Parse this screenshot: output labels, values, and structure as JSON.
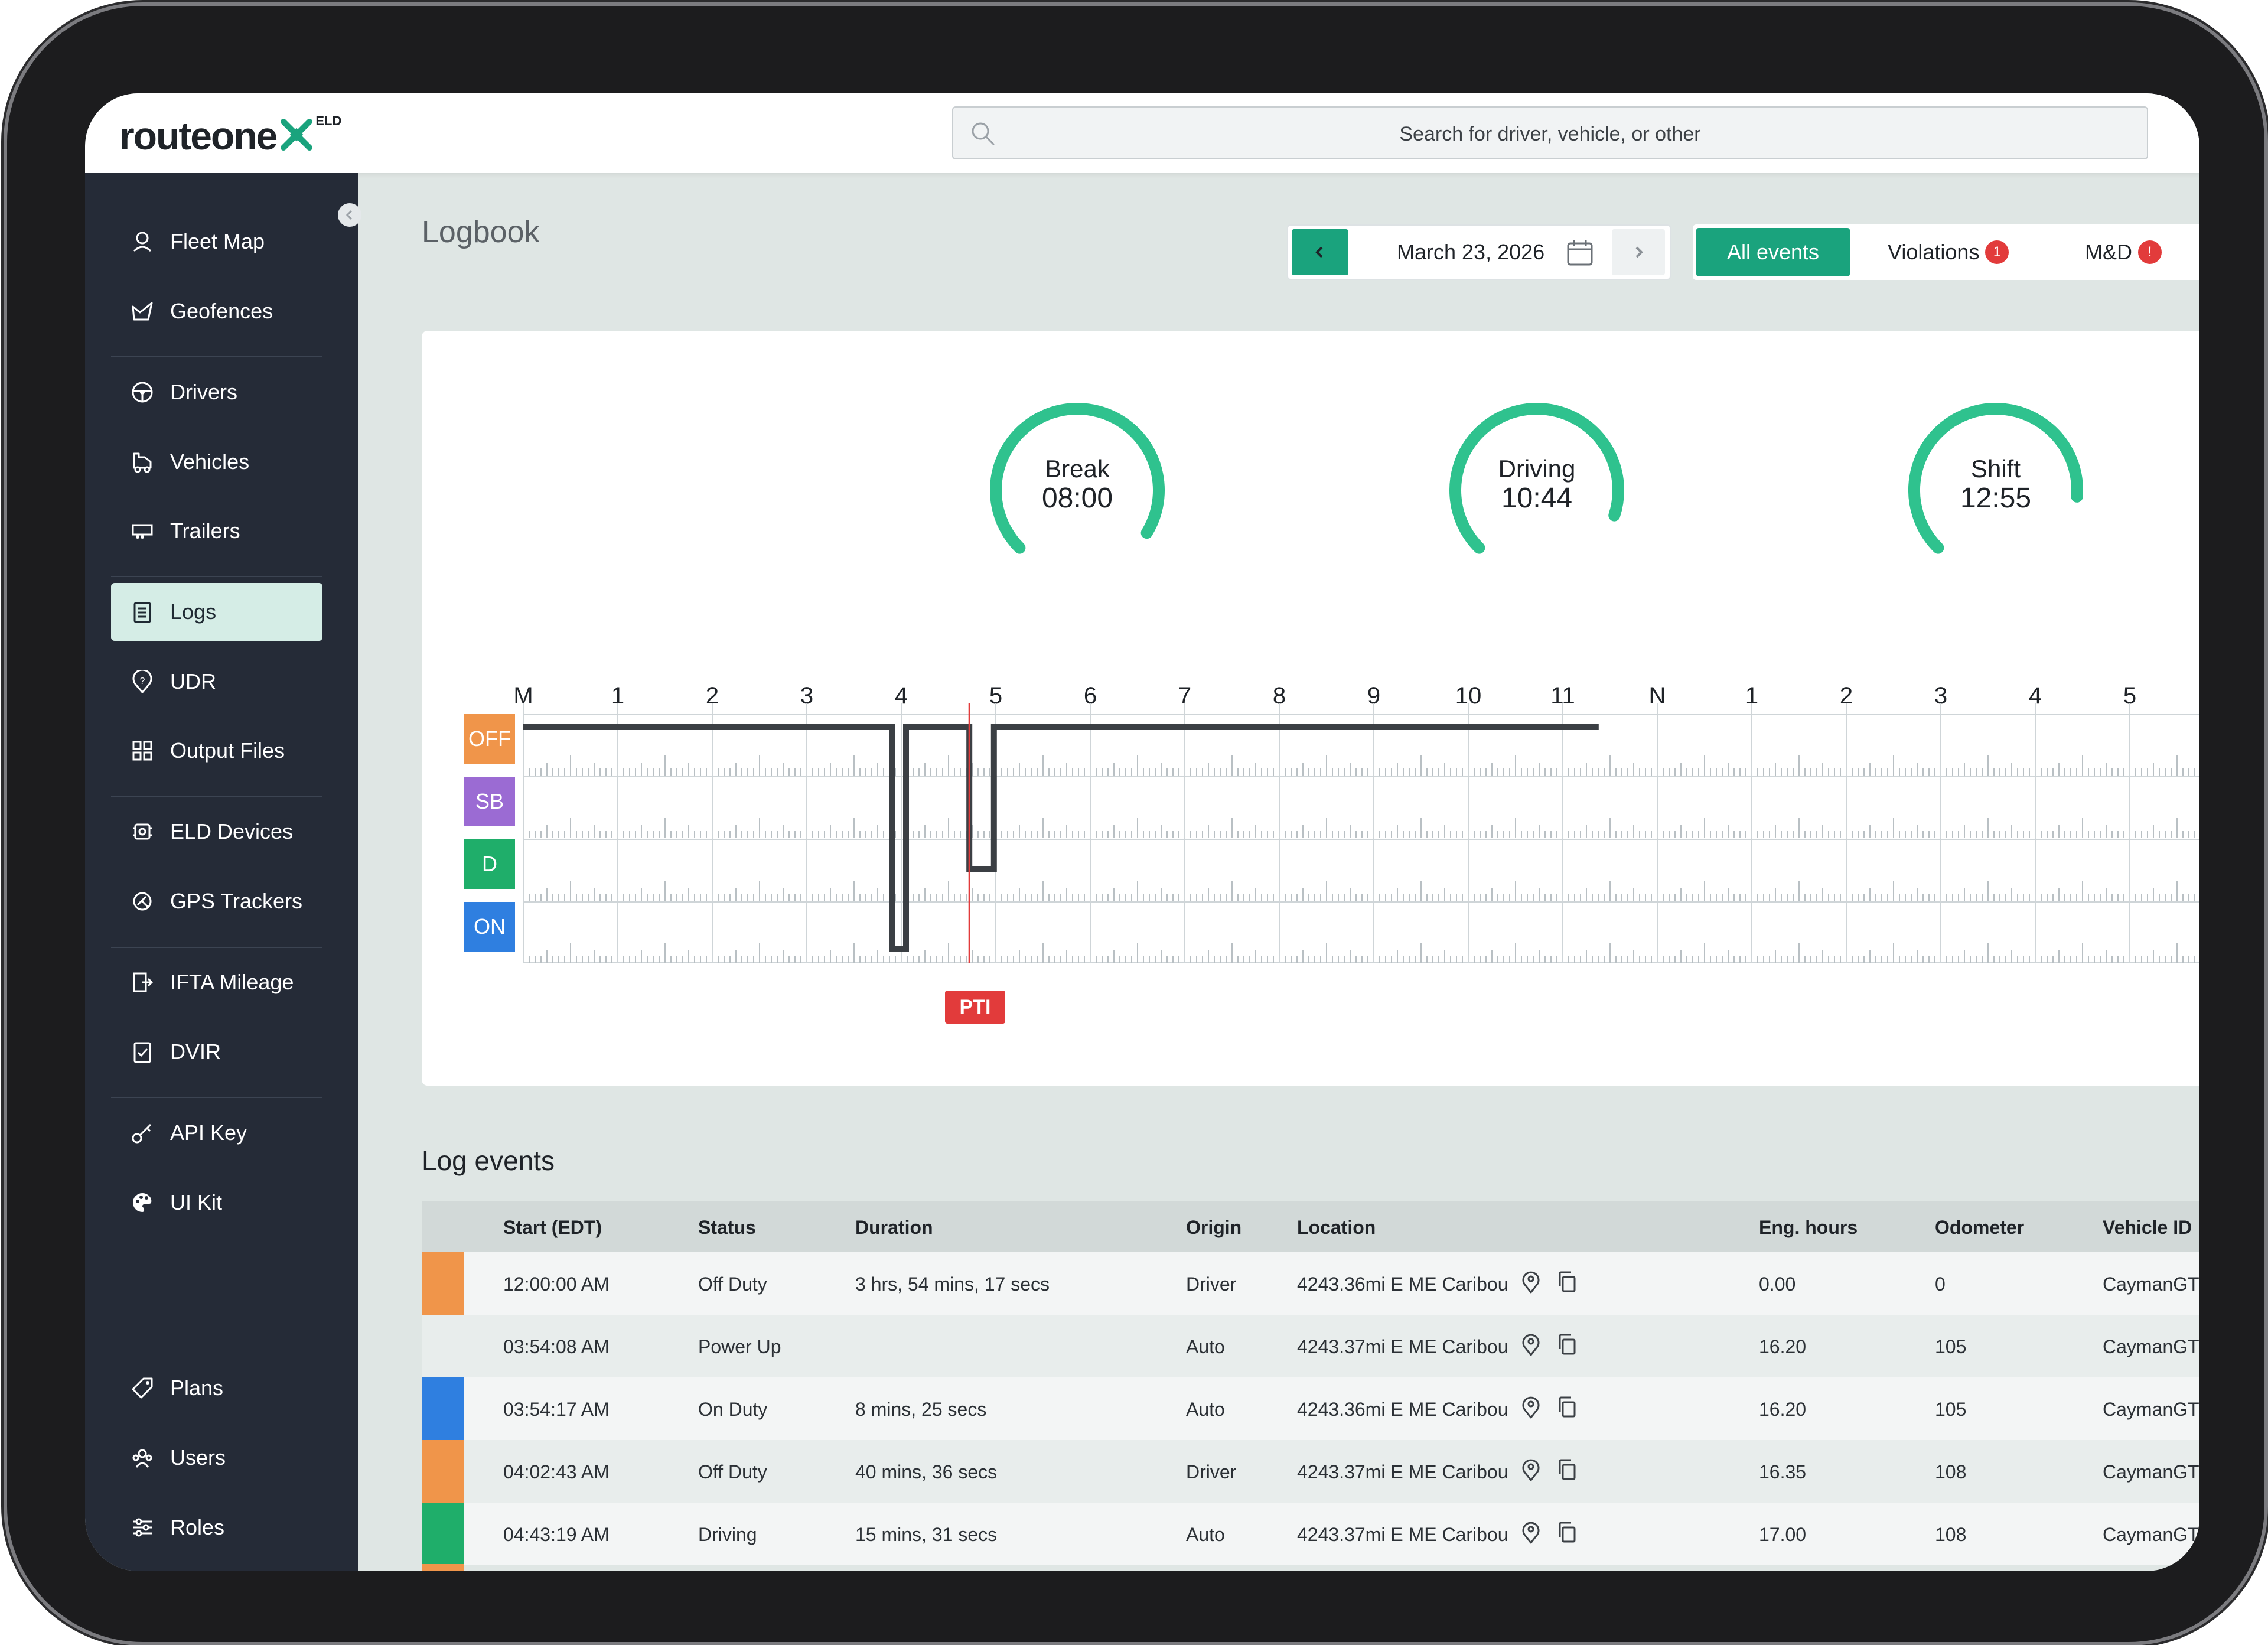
{
  "brand": {
    "name": "routeone",
    "badge": "ELD"
  },
  "search": {
    "placeholder": "Search for driver, vehicle, or other"
  },
  "sidebar": {
    "items": [
      {
        "label": "Fleet Map",
        "icon": "pin-icon"
      },
      {
        "label": "Geofences",
        "icon": "geofence-icon"
      },
      {
        "label": "Drivers",
        "icon": "steering-wheel-icon"
      },
      {
        "label": "Vehicles",
        "icon": "truck-icon"
      },
      {
        "label": "Trailers",
        "icon": "trailer-icon"
      },
      {
        "label": "Logs",
        "icon": "clipboard-icon",
        "active": true
      },
      {
        "label": "UDR",
        "icon": "question-pin-icon"
      },
      {
        "label": "Output Files",
        "icon": "grid-icon"
      },
      {
        "label": "ELD Devices",
        "icon": "device-icon"
      },
      {
        "label": "GPS Trackers",
        "icon": "gps-icon"
      },
      {
        "label": "IFTA Mileage",
        "icon": "mileage-icon"
      },
      {
        "label": "DVIR",
        "icon": "checklist-icon"
      },
      {
        "label": "API Key",
        "icon": "key-icon"
      },
      {
        "label": "UI Kit",
        "icon": "palette-icon"
      },
      {
        "label": "Plans",
        "icon": "tag-icon"
      },
      {
        "label": "Users",
        "icon": "users-icon"
      },
      {
        "label": "Roles",
        "icon": "sliders-icon"
      }
    ]
  },
  "page": {
    "title": "Logbook"
  },
  "date_nav": {
    "date": "March 23, 2026"
  },
  "filters": {
    "all": "All events",
    "violations": "Violations",
    "violations_count": "1",
    "md": "M&D",
    "md_count": "!"
  },
  "gauges": [
    {
      "name": "Break",
      "value": "08:00",
      "fraction": 0.95
    },
    {
      "name": "Driving",
      "value": "10:44",
      "fraction": 0.9
    },
    {
      "name": "Shift",
      "value": "12:55",
      "fraction": 0.85
    }
  ],
  "timeline": {
    "hour_labels": [
      "M",
      "1",
      "2",
      "3",
      "4",
      "5",
      "6",
      "7",
      "8",
      "9",
      "10",
      "11",
      "N",
      "1",
      "2",
      "3",
      "4",
      "5"
    ],
    "statuses": [
      {
        "label": "OFF",
        "color": "#f0954a"
      },
      {
        "label": "SB",
        "color": "#9b6bd3"
      },
      {
        "label": "D",
        "color": "#1fae6a"
      },
      {
        "label": "ON",
        "color": "#2f7fe0"
      }
    ],
    "marker": "PTI",
    "segments": [
      {
        "status": 0,
        "start": 0.0,
        "end": 3.9
      },
      {
        "status": 3,
        "start": 3.9,
        "end": 4.05
      },
      {
        "status": 0,
        "start": 4.05,
        "end": 4.72
      },
      {
        "status": 2,
        "start": 4.72,
        "end": 4.98
      },
      {
        "status": 0,
        "start": 4.98,
        "end": 11.38
      }
    ],
    "marker_hour": 4.72
  },
  "log_events": {
    "title": "Log events",
    "columns": [
      "Start (EDT)",
      "Status",
      "Duration",
      "Origin",
      "Location",
      "Eng. hours",
      "Odometer",
      "Vehicle ID"
    ],
    "rows": [
      {
        "color": "#f0954a",
        "start": "12:00:00 AM",
        "status": "Off Duty",
        "duration": "3 hrs, 54 mins, 17 secs",
        "origin": "Driver",
        "location": "4243.36mi E ME Caribou",
        "eng": "0.00",
        "odo": "0",
        "vehicle": "CaymanGTS"
      },
      {
        "color": "",
        "start": "03:54:08 AM",
        "status": "Power Up",
        "duration": "",
        "origin": "Auto",
        "location": "4243.37mi E ME Caribou",
        "eng": "16.20",
        "odo": "105",
        "vehicle": "CaymanGTS"
      },
      {
        "color": "#2f7fe0",
        "start": "03:54:17 AM",
        "status": "On Duty",
        "duration": "8 mins, 25 secs",
        "origin": "Auto",
        "location": "4243.36mi E ME Caribou",
        "eng": "16.20",
        "odo": "105",
        "vehicle": "CaymanGTS"
      },
      {
        "color": "#f0954a",
        "start": "04:02:43 AM",
        "status": "Off Duty",
        "duration": "40 mins, 36 secs",
        "origin": "Driver",
        "location": "4243.37mi E ME Caribou",
        "eng": "16.35",
        "odo": "108",
        "vehicle": "CaymanGTS"
      },
      {
        "color": "#1fae6a",
        "start": "04:43:19 AM",
        "status": "Driving",
        "duration": "15 mins, 31 secs",
        "origin": "Auto",
        "location": "4243.37mi E ME Caribou",
        "eng": "17.00",
        "odo": "108",
        "vehicle": "CaymanGTS"
      }
    ]
  },
  "colors": {
    "accent": "#1aa37d",
    "gauge": "#2fc28e",
    "danger": "#e23b3b",
    "sidebar": "#252b37"
  }
}
